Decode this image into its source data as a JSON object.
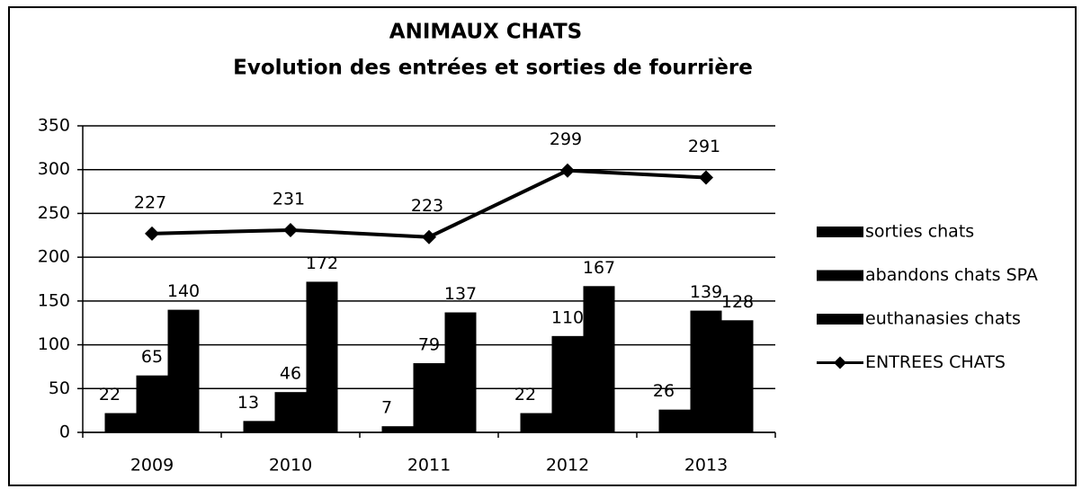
{
  "chart_data": {
    "type": "bar",
    "title": "ANIMAUX CHATS",
    "subtitle": "Evolution des entrées et sorties de fourrière",
    "categories": [
      "2009",
      "2010",
      "2011",
      "2012",
      "2013"
    ],
    "series": [
      {
        "name": "sorties chats",
        "color": "#000000",
        "values": [
          22,
          13,
          7,
          22,
          26
        ]
      },
      {
        "name": "abandons chats SPA",
        "color": "#000000",
        "values": [
          65,
          46,
          79,
          110,
          139
        ]
      },
      {
        "name": "euthanasies chats",
        "color": "#000000",
        "values": [
          140,
          172,
          137,
          167,
          128
        ]
      },
      {
        "name": "ENTREES CHATS",
        "color": "#000000",
        "type": "line",
        "values": [
          227,
          231,
          223,
          299,
          291
        ]
      }
    ],
    "ylim": [
      0,
      350
    ],
    "yticks": [
      0,
      50,
      100,
      150,
      200,
      250,
      300,
      350
    ],
    "grid": true,
    "legend": "right"
  }
}
